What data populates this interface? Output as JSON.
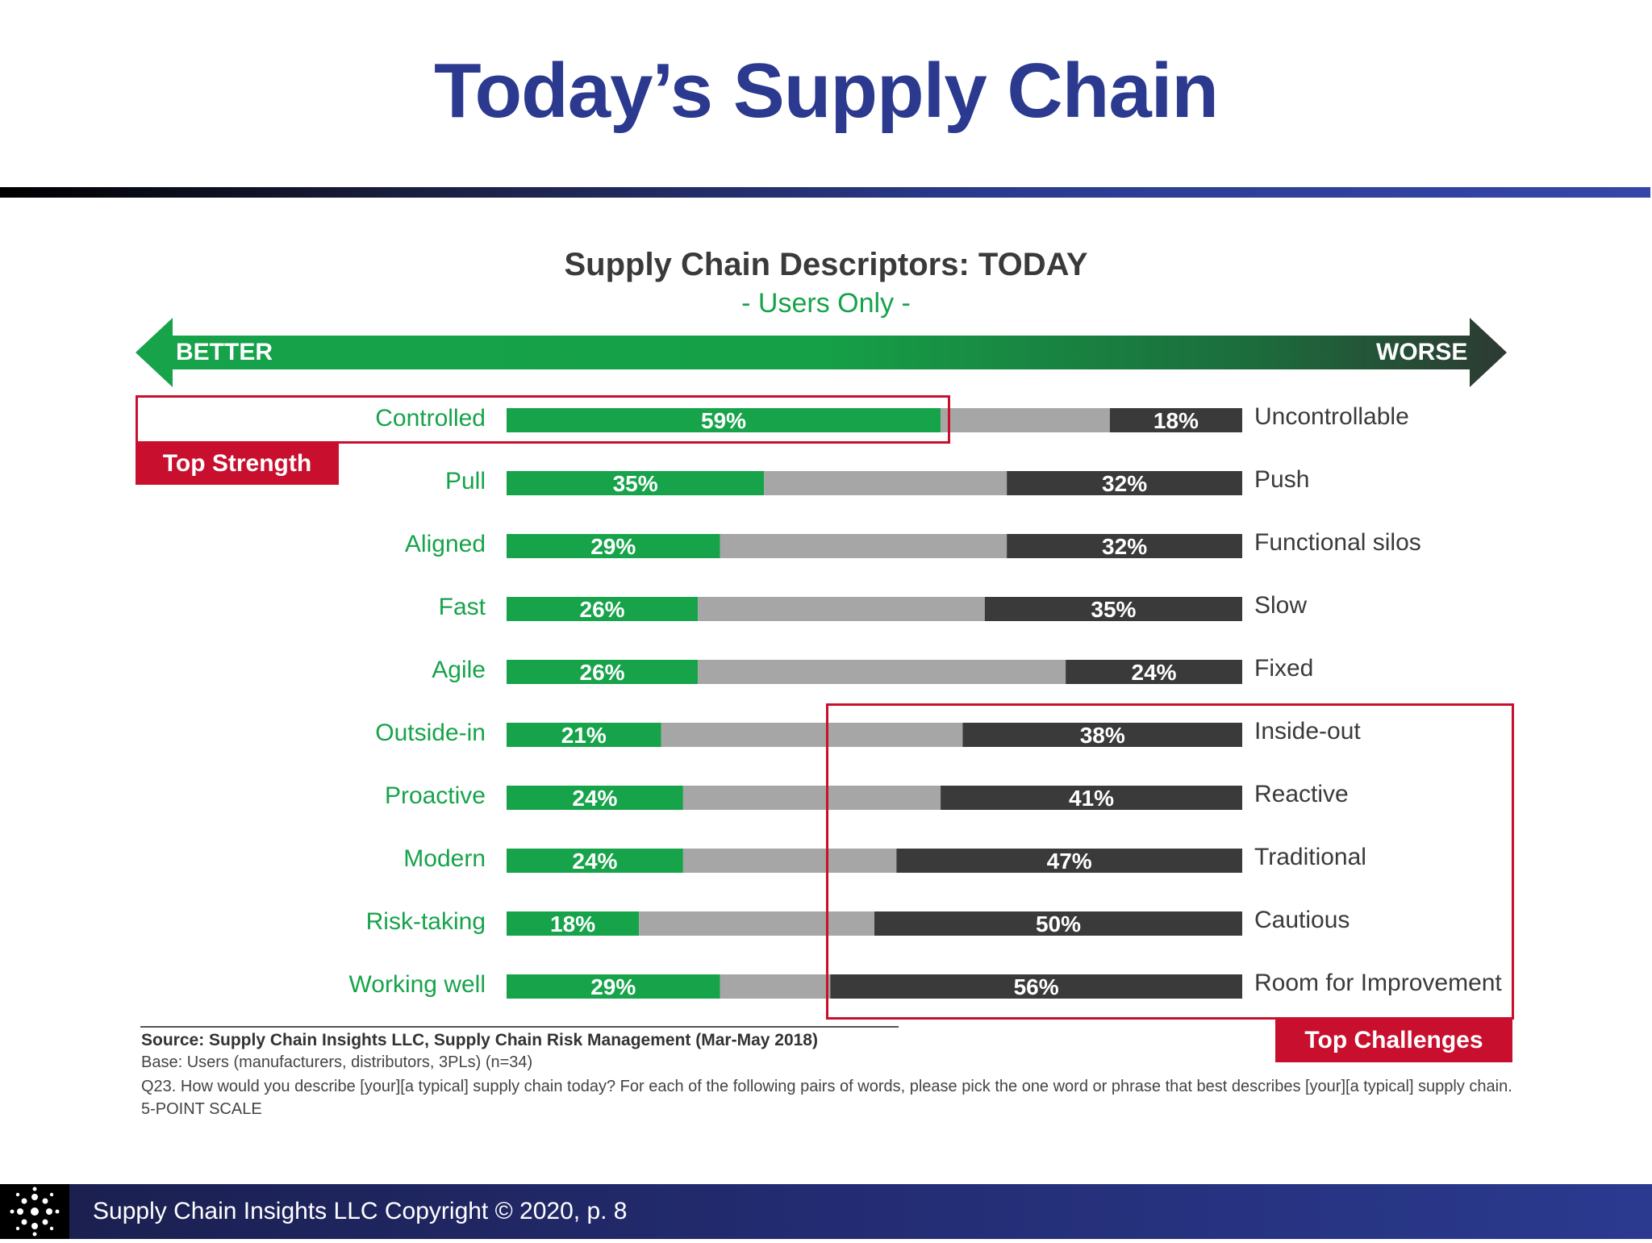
{
  "slide": {
    "title": "Today’s Supply Chain",
    "footer": "Supply Chain Insights LLC Copyright © 2020, p. 8"
  },
  "colors": {
    "title": "#2b3a8f",
    "better": "#16a34a",
    "neutral": "#a6a6a6",
    "worse": "#3a3a3a",
    "highlight": "#c8102e"
  },
  "chart_data": {
    "type": "bar",
    "stacked": true,
    "orientation": "horizontal",
    "title": "Supply Chain Descriptors:  TODAY",
    "subtitle": "- Users Only -",
    "scale_left": "BETTER",
    "scale_right": "WORSE",
    "left_labels": [
      "Controlled",
      "Pull",
      "Aligned",
      "Fast",
      "Agile",
      "Outside-in",
      "Proactive",
      "Modern",
      "Risk-taking",
      "Working well"
    ],
    "right_labels": [
      "Uncontrollable",
      "Push",
      "Functional silos",
      "Slow",
      "Fixed",
      "Inside-out",
      "Reactive",
      "Traditional",
      "Cautious",
      "Room for Improvement"
    ],
    "series": [
      {
        "role": "better",
        "values": [
          59,
          35,
          29,
          26,
          26,
          21,
          24,
          24,
          18,
          29
        ]
      },
      {
        "role": "neutral",
        "values": [
          23,
          33,
          39,
          39,
          50,
          41,
          35,
          29,
          32,
          15
        ]
      },
      {
        "role": "worse",
        "values": [
          18,
          32,
          32,
          35,
          24,
          38,
          41,
          47,
          50,
          56
        ]
      }
    ],
    "xlim": [
      0,
      100
    ],
    "callouts": {
      "strength": "Top Strength",
      "challenges": "Top Challenges"
    }
  },
  "notes": {
    "source": "Source:  Supply Chain Insights LLC, Supply Chain Risk Management (Mar-May 2018)",
    "base": "Base: Users (manufacturers, distributors, 3PLs) (n=34)",
    "question": "Q23. How would you describe [your][a typical] supply chain today?  For each of the following pairs of words, please pick the one word or phrase that best describes [your][a typical] supply chain. 5-POINT SCALE"
  }
}
